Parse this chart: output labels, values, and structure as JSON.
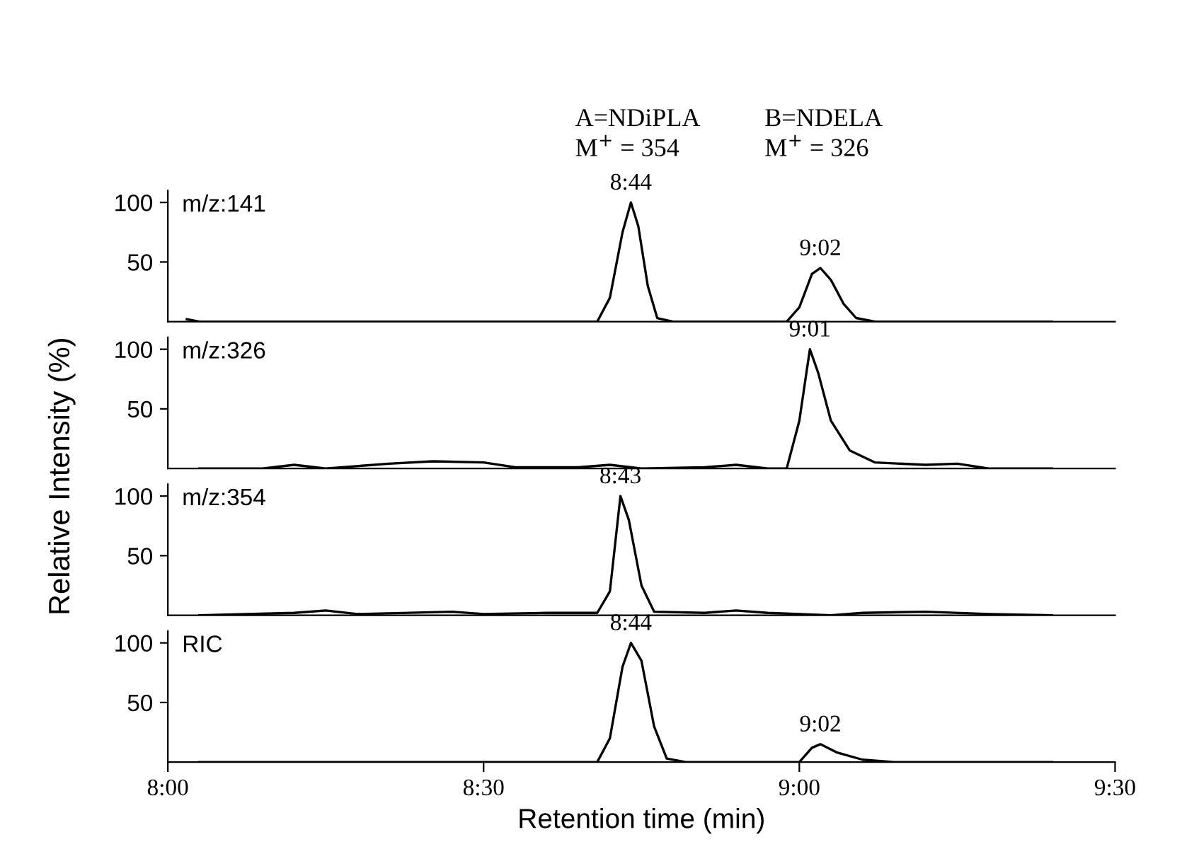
{
  "chart_data": [
    {
      "type": "line",
      "title": "m/z:141",
      "annotations": [
        "A=NDiPLA\nM$^{+}$ = 354",
        "B=NDELA\nM$^{+}$ = 326",
        {
          "text": "8:44",
          "x": 8.7333,
          "y": 100
        },
        {
          "text": "9:02",
          "x": 9.0333,
          "y": 45
        }
      ],
      "series": [
        {
          "color": "#000000",
          "x": [
            8.03,
            8.05,
            8.3,
            8.68,
            8.7,
            8.72,
            8.7333,
            8.745,
            8.76,
            8.775,
            8.8,
            8.98,
            9.0,
            9.02,
            9.0333,
            9.05,
            9.07,
            9.09,
            9.12,
            9.4
          ],
          "values": [
            2,
            0,
            0,
            0,
            20,
            75,
            100,
            80,
            30,
            3,
            0,
            0,
            12,
            40,
            45,
            35,
            15,
            3,
            0,
            0
          ]
        }
      ],
      "xlim": [
        8.0,
        9.5
      ],
      "ylim": [
        0,
        110
      ],
      "yticks": [
        50,
        100
      ],
      "tick_labels": "y"
    },
    {
      "type": "line",
      "title": "m/z:326",
      "ylabel": "Relative Intensity (%)",
      "annotations": [
        {
          "text": "9:01",
          "x": 9.0167,
          "y": 100
        }
      ],
      "series": [
        {
          "color": "#000000",
          "x": [
            8.05,
            8.15,
            8.2,
            8.25,
            8.35,
            8.42,
            8.5,
            8.55,
            8.65,
            8.7,
            8.75,
            8.85,
            8.9,
            8.95,
            8.98,
            9.0,
            9.0167,
            9.03,
            9.05,
            9.08,
            9.12,
            9.2,
            9.25,
            9.3,
            9.4
          ],
          "values": [
            0,
            0,
            3,
            0,
            4,
            6,
            5,
            1,
            1,
            3,
            0,
            1,
            3,
            0,
            0,
            40,
            100,
            80,
            40,
            15,
            5,
            3,
            4,
            0,
            0
          ]
        }
      ],
      "xlim": [
        8.0,
        9.5
      ],
      "ylim": [
        0,
        110
      ],
      "yticks": [
        50,
        100
      ],
      "tick_labels": "y"
    },
    {
      "type": "line",
      "title": "m/z:354",
      "annotations": [
        {
          "text": "8:43",
          "x": 8.7167,
          "y": 100
        }
      ],
      "series": [
        {
          "color": "#000000",
          "x": [
            8.05,
            8.2,
            8.25,
            8.3,
            8.45,
            8.5,
            8.6,
            8.68,
            8.7,
            8.7167,
            8.73,
            8.75,
            8.77,
            8.85,
            8.9,
            8.95,
            9.05,
            9.1,
            9.2,
            9.3,
            9.4
          ],
          "values": [
            0,
            2,
            4,
            1,
            3,
            1,
            2,
            2,
            20,
            100,
            80,
            25,
            3,
            2,
            4,
            2,
            0,
            2,
            3,
            1,
            0
          ]
        }
      ],
      "xlim": [
        8.0,
        9.5
      ],
      "ylim": [
        0,
        110
      ],
      "yticks": [
        50,
        100
      ],
      "tick_labels": "y"
    },
    {
      "type": "line",
      "title": "RIC",
      "xlabel": "Retention time (min)",
      "annotations": [
        {
          "text": "8:44",
          "x": 8.7333,
          "y": 100
        },
        {
          "text": "9:02",
          "x": 9.0333,
          "y": 15
        }
      ],
      "series": [
        {
          "color": "#000000",
          "x": [
            8.05,
            8.68,
            8.7,
            8.72,
            8.7333,
            8.75,
            8.77,
            8.79,
            8.82,
            9.0,
            9.02,
            9.0333,
            9.06,
            9.1,
            9.15,
            9.4
          ],
          "values": [
            0,
            0,
            20,
            80,
            100,
            85,
            30,
            3,
            0,
            0,
            12,
            15,
            8,
            2,
            0,
            0
          ]
        }
      ],
      "xlim": [
        8.0,
        9.5
      ],
      "xticks": [
        {
          "value": 8.0,
          "label": "8:00"
        },
        {
          "value": 8.5,
          "label": "8:30"
        },
        {
          "value": 9.0,
          "label": "9:00"
        },
        {
          "value": 9.5,
          "label": "9:30"
        }
      ],
      "ylim": [
        0,
        110
      ],
      "yticks": [
        50,
        100
      ]
    }
  ]
}
